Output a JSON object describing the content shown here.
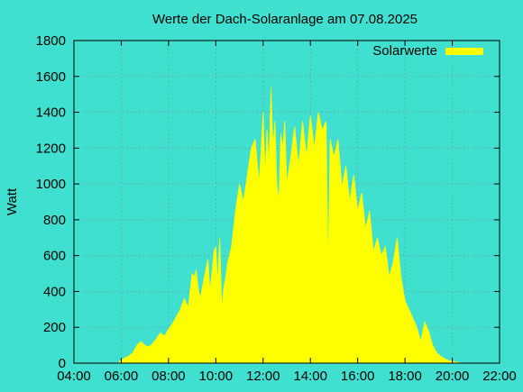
{
  "chart_data": {
    "type": "area",
    "title": "Werte der Dach-Solaranlage am 07.08.2025",
    "xlabel": "",
    "ylabel": "Watt",
    "xlim": [
      "04:00",
      "22:00"
    ],
    "ylim": [
      0,
      1800
    ],
    "x_ticks": [
      "04:00",
      "06:00",
      "08:00",
      "10:00",
      "12:00",
      "14:00",
      "16:00",
      "18:00",
      "20:00",
      "22:00"
    ],
    "y_ticks": [
      "0",
      "200",
      "400",
      "600",
      "800",
      "1000",
      "1200",
      "1400",
      "1600",
      "1800"
    ],
    "grid": true,
    "legend_position": "top-right",
    "colors": {
      "background": "#40E0D0",
      "series": "#FFFF00",
      "grid": "#808080"
    },
    "series": [
      {
        "name": "Solarwerte",
        "x": [
          "05:55",
          "06:00",
          "06:10",
          "06:20",
          "06:30",
          "06:40",
          "06:50",
          "07:00",
          "07:10",
          "07:20",
          "07:30",
          "07:40",
          "07:50",
          "08:00",
          "08:10",
          "08:20",
          "08:30",
          "08:40",
          "08:50",
          "09:00",
          "09:05",
          "09:10",
          "09:15",
          "09:20",
          "09:30",
          "09:40",
          "09:45",
          "09:50",
          "09:55",
          "10:00",
          "10:05",
          "10:10",
          "10:15",
          "10:20",
          "10:25",
          "10:30",
          "10:40",
          "10:50",
          "11:00",
          "11:10",
          "11:20",
          "11:30",
          "11:40",
          "11:50",
          "12:00",
          "12:05",
          "12:10",
          "12:15",
          "12:20",
          "12:25",
          "12:30",
          "12:35",
          "12:40",
          "12:45",
          "12:50",
          "12:55",
          "13:00",
          "13:10",
          "13:20",
          "13:30",
          "13:40",
          "13:50",
          "14:00",
          "14:10",
          "14:20",
          "14:30",
          "14:40",
          "14:45",
          "14:50",
          "15:00",
          "15:10",
          "15:20",
          "15:30",
          "15:40",
          "15:50",
          "16:00",
          "16:10",
          "16:20",
          "16:30",
          "16:40",
          "16:50",
          "17:00",
          "17:10",
          "17:20",
          "17:30",
          "17:40",
          "17:50",
          "18:00",
          "18:10",
          "18:20",
          "18:30",
          "18:40",
          "18:50",
          "19:00",
          "19:10",
          "19:20",
          "19:30",
          "19:40",
          "19:50",
          "20:00",
          "20:10",
          "20:20",
          "20:30"
        ],
        "y": [
          10,
          15,
          30,
          40,
          60,
          100,
          120,
          100,
          90,
          110,
          140,
          170,
          150,
          190,
          220,
          260,
          300,
          360,
          310,
          500,
          480,
          520,
          420,
          360,
          470,
          580,
          400,
          500,
          620,
          650,
          440,
          700,
          300,
          420,
          480,
          560,
          650,
          850,
          1000,
          900,
          1050,
          1200,
          1250,
          1000,
          1400,
          1050,
          1300,
          1100,
          1540,
          1200,
          1350,
          1000,
          900,
          1280,
          1200,
          1350,
          1000,
          1150,
          1320,
          1100,
          1350,
          1150,
          1380,
          1200,
          1400,
          1300,
          1350,
          500,
          1250,
          1150,
          1250,
          980,
          1100,
          900,
          1050,
          850,
          950,
          750,
          850,
          620,
          700,
          600,
          650,
          480,
          560,
          700,
          480,
          350,
          300,
          250,
          200,
          120,
          230,
          180,
          100,
          60,
          40,
          25,
          15,
          10,
          5,
          2,
          0
        ]
      }
    ]
  }
}
